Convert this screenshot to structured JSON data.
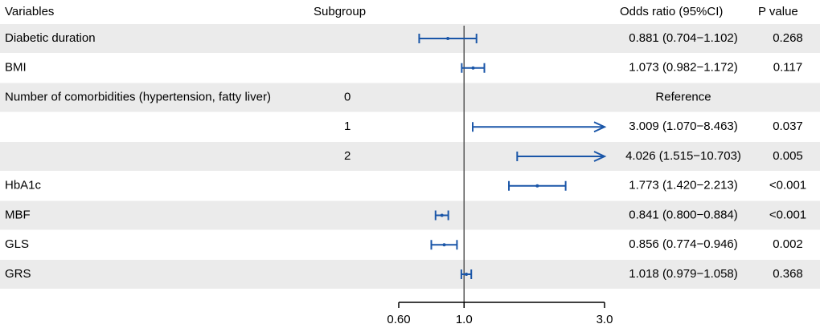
{
  "chart_data": {
    "type": "forest",
    "headers": {
      "variables": "Variables",
      "subgroup": "Subgroup",
      "or_ci": "Odds ratio (95%CI)",
      "p": "P value"
    },
    "x_axis": {
      "scale": "log",
      "range": [
        0.6,
        3.0
      ],
      "ticks": [
        0.6,
        1.0,
        3.0
      ],
      "tick_labels": [
        "0.60",
        "1.0",
        "3.0"
      ],
      "reference_line": 1.0
    },
    "colors": {
      "estimate": "#1a56a8",
      "band": "#ebebeb",
      "reference": "#555555"
    },
    "rows": [
      {
        "variable": "Diabetic duration",
        "subgroup": "",
        "or": 0.881,
        "lower": 0.704,
        "upper": 1.102,
        "or_ci": "0.881 (0.704−1.102)",
        "p": "0.268"
      },
      {
        "variable": "BMI",
        "subgroup": "",
        "or": 1.073,
        "lower": 0.982,
        "upper": 1.172,
        "or_ci": "1.073 (0.982−1.172)",
        "p": "0.117"
      },
      {
        "variable": "Number of comorbidities (hypertension, fatty liver)",
        "subgroup": "0",
        "or": null,
        "lower": null,
        "upper": null,
        "or_ci": "Reference",
        "p": ""
      },
      {
        "variable": "",
        "subgroup": "1",
        "or": 3.009,
        "lower": 1.07,
        "upper": 8.463,
        "or_ci": "3.009 (1.070−8.463)",
        "p": "0.037"
      },
      {
        "variable": "",
        "subgroup": "2",
        "or": 4.026,
        "lower": 1.515,
        "upper": 10.703,
        "or_ci": "4.026 (1.515−10.703)",
        "p": "0.005"
      },
      {
        "variable": "HbA1c",
        "subgroup": "",
        "or": 1.773,
        "lower": 1.42,
        "upper": 2.213,
        "or_ci": "1.773 (1.420−2.213)",
        "p": "<0.001"
      },
      {
        "variable": "MBF",
        "subgroup": "",
        "or": 0.841,
        "lower": 0.8,
        "upper": 0.884,
        "or_ci": "0.841 (0.800−0.884)",
        "p": "<0.001"
      },
      {
        "variable": "GLS",
        "subgroup": "",
        "or": 0.856,
        "lower": 0.774,
        "upper": 0.946,
        "or_ci": "0.856 (0.774−0.946)",
        "p": "0.002"
      },
      {
        "variable": "GRS",
        "subgroup": "",
        "or": 1.018,
        "lower": 0.979,
        "upper": 1.058,
        "or_ci": "1.018 (0.979−1.058)",
        "p": "0.368"
      }
    ]
  }
}
